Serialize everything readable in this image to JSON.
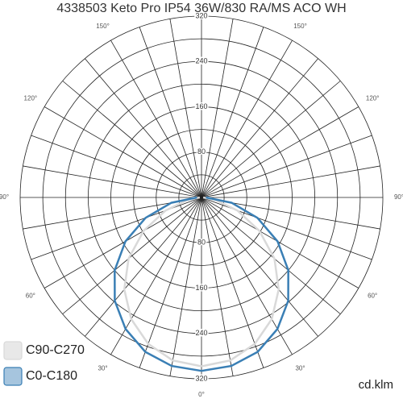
{
  "chart_data": {
    "type": "polar",
    "title": "4338503 Keto Pro IP54 36W/830 RA/MS ACO WH",
    "unit": "cd.klm",
    "rlim": [
      0,
      320
    ],
    "rticks": [
      80,
      160,
      240,
      320
    ],
    "rminor": [
      40,
      120,
      200,
      280
    ],
    "angle_ticks": [
      {
        "value": 0,
        "label": "0°"
      },
      {
        "value": 30,
        "label": "30°"
      },
      {
        "value": 60,
        "label": "60°"
      },
      {
        "value": 90,
        "label": "90°"
      },
      {
        "value": 120,
        "label": "120°"
      },
      {
        "value": 150,
        "label": "150°"
      }
    ],
    "angles": [
      0,
      10,
      20,
      30,
      40,
      50,
      60,
      70,
      80,
      90
    ],
    "series": [
      {
        "name": "C90-C270",
        "color": "#d9d9d9",
        "values": [
          298,
          292,
          275,
          248,
          212,
          168,
          118,
          68,
          25,
          3
        ]
      },
      {
        "name": "C0-C180",
        "color": "#3a7fb5",
        "values": [
          306,
          302,
          290,
          268,
          238,
          200,
          155,
          105,
          54,
          8
        ]
      }
    ],
    "legend": "bottom-left"
  }
}
